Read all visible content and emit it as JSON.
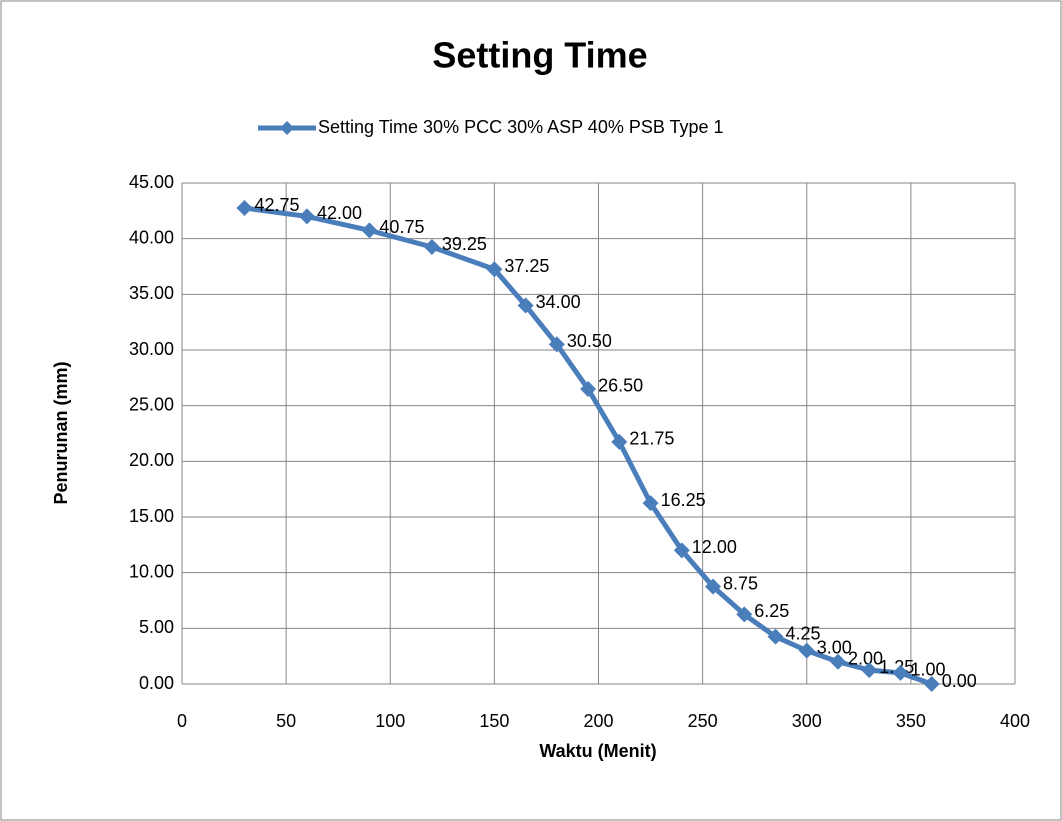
{
  "chart_data": {
    "type": "line",
    "title": "Setting Time",
    "x_label": "Waktu (Menit)",
    "y_label": "Penurunan (mm)",
    "x": [
      30,
      60,
      90,
      120,
      150,
      165,
      180,
      195,
      210,
      225,
      240,
      255,
      270,
      285,
      300,
      315,
      330,
      345,
      360
    ],
    "series": [
      {
        "name": "Setting Time 30% PCC 30% ASP 40% PSB Type 1",
        "color": "#4a7ebb",
        "values": [
          42.75,
          42,
          40.75,
          39.25,
          37.25,
          34,
          30.5,
          26.5,
          21.75,
          16.25,
          12,
          8.75,
          6.25,
          4.25,
          3,
          2,
          1.25,
          1,
          0
        ],
        "value_labels": [
          "42.75",
          "42.00",
          "40.75",
          "39.25",
          "37.25",
          "34.00",
          "30.50",
          "26.50",
          "21.75",
          "16.25",
          "12.00",
          "8.75",
          "6.25",
          "4.25",
          "3.00",
          "2.00",
          "1.25",
          "1.00",
          "0.00"
        ]
      }
    ],
    "xlim": [
      0,
      400
    ],
    "xticks": [
      0,
      50,
      100,
      150,
      200,
      250,
      300,
      350,
      400
    ],
    "ylim": [
      0,
      45
    ],
    "yticks": [
      {
        "value": 0,
        "label": "0.00"
      },
      {
        "value": 5,
        "label": "5.00"
      },
      {
        "value": 10,
        "label": "10.00"
      },
      {
        "value": 15,
        "label": "15.00"
      },
      {
        "value": 20,
        "label": "20.00"
      },
      {
        "value": 25,
        "label": "25.00"
      },
      {
        "value": 30,
        "label": "30.00"
      },
      {
        "value": 35,
        "label": "35.00"
      },
      {
        "value": 40,
        "label": "40.00"
      },
      {
        "value": 45,
        "label": "45.00"
      }
    ],
    "grid": true,
    "legend": "top"
  }
}
